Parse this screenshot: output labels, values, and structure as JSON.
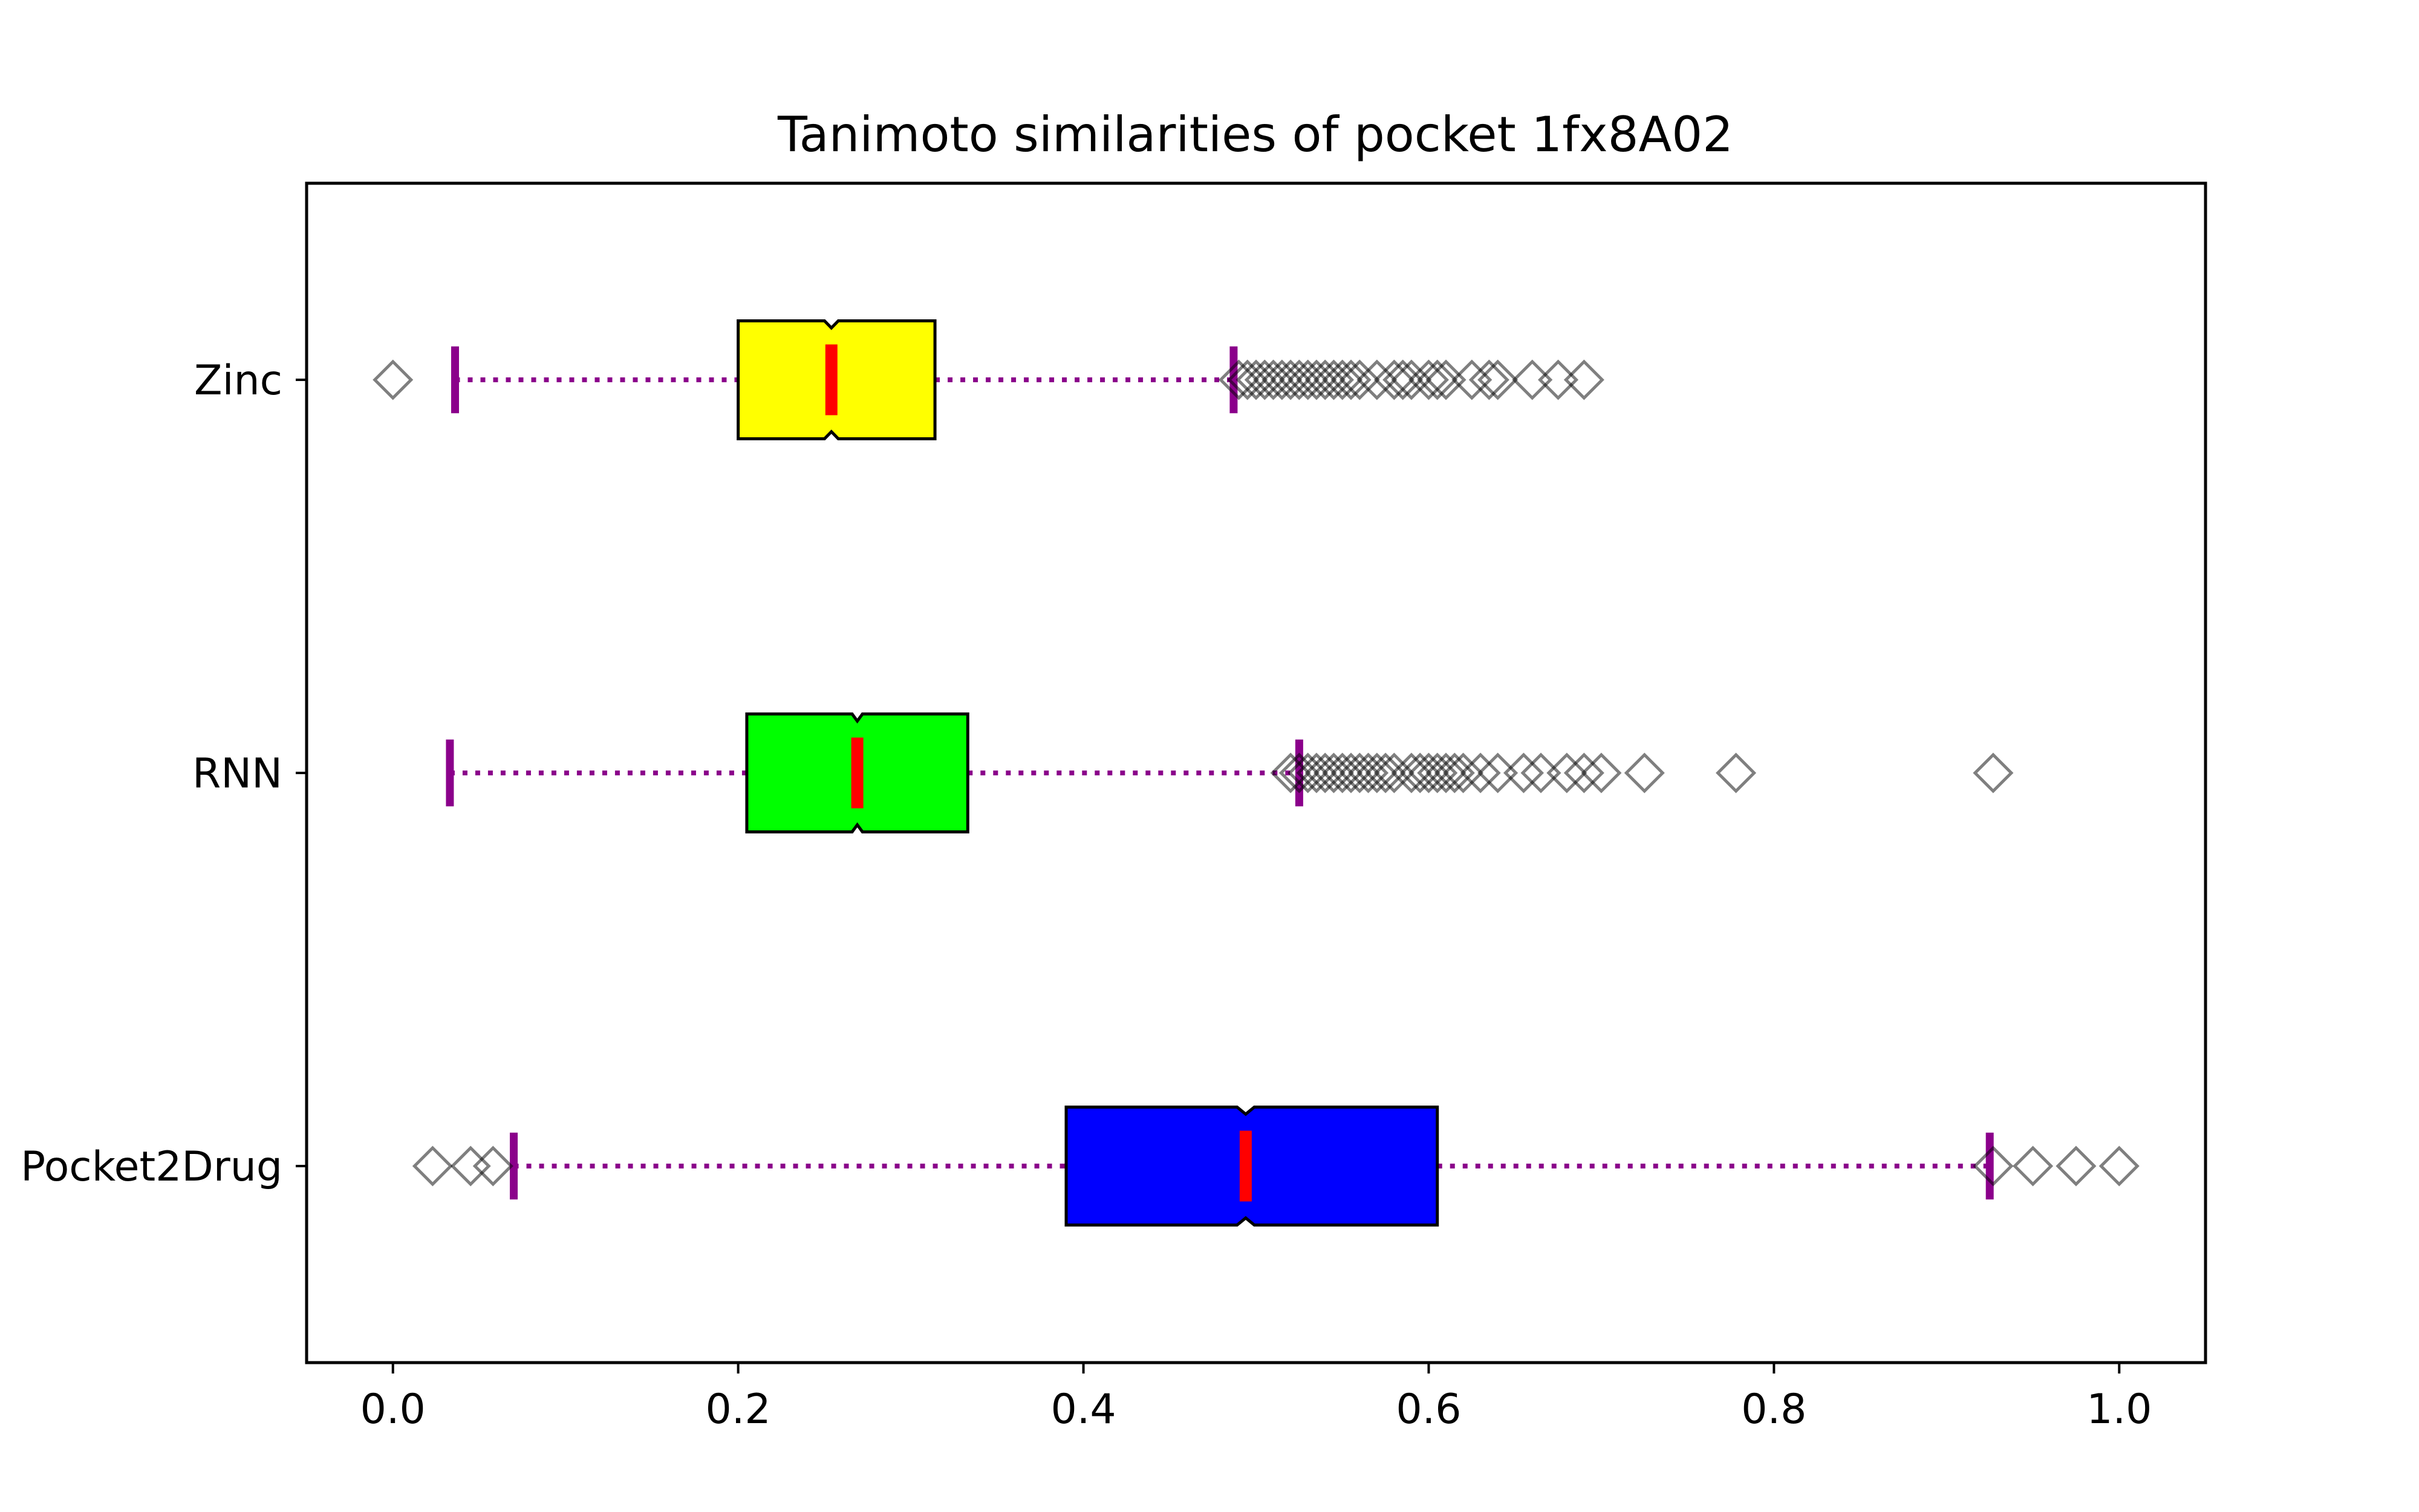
{
  "chart_data": {
    "type": "boxplot",
    "orientation": "horizontal",
    "title": "Tanimoto similarities of pocket 1fx8A02",
    "xlabel": "",
    "ylabel": "",
    "xlim": [
      -0.05,
      1.05
    ],
    "xticks": [
      0.0,
      0.2,
      0.4,
      0.6,
      0.8,
      1.0
    ],
    "xtick_labels": [
      "0.0",
      "0.2",
      "0.4",
      "0.6",
      "0.8",
      "1.0"
    ],
    "grid": false,
    "notched": true,
    "colors": {
      "whisker": "#8b008b",
      "median": "#ff0000",
      "outlier": "#000000",
      "box_edge": "#000000"
    },
    "series": [
      {
        "name": "Zinc",
        "color": "#ffff00",
        "whisker_low": 0.036,
        "q1": 0.2,
        "median": 0.254,
        "q3": 0.314,
        "whisker_high": 0.487,
        "notch_low": 0.25,
        "notch_high": 0.258,
        "outliers": [
          0.0,
          0.49,
          0.495,
          0.5,
          0.505,
          0.51,
          0.515,
          0.52,
          0.525,
          0.53,
          0.535,
          0.54,
          0.545,
          0.55,
          0.555,
          0.56,
          0.57,
          0.58,
          0.585,
          0.59,
          0.6,
          0.605,
          0.61,
          0.625,
          0.635,
          0.64,
          0.66,
          0.675,
          0.69
        ]
      },
      {
        "name": "RNN",
        "color": "#00ff00",
        "whisker_low": 0.033,
        "q1": 0.205,
        "median": 0.269,
        "q3": 0.333,
        "whisker_high": 0.525,
        "notch_low": 0.266,
        "notch_high": 0.272,
        "outliers": [
          0.52,
          0.525,
          0.53,
          0.535,
          0.54,
          0.545,
          0.55,
          0.555,
          0.56,
          0.565,
          0.57,
          0.575,
          0.58,
          0.59,
          0.595,
          0.6,
          0.605,
          0.61,
          0.615,
          0.62,
          0.63,
          0.64,
          0.655,
          0.665,
          0.68,
          0.69,
          0.7,
          0.725,
          0.778,
          0.927
        ]
      },
      {
        "name": "Pocket2Drug",
        "color": "#0000ff",
        "whisker_low": 0.07,
        "q1": 0.39,
        "median": 0.494,
        "q3": 0.605,
        "whisker_high": 0.925,
        "notch_low": 0.489,
        "notch_high": 0.499,
        "outliers": [
          0.023,
          0.045,
          0.058,
          0.927,
          0.95,
          0.975,
          1.0
        ]
      }
    ]
  }
}
